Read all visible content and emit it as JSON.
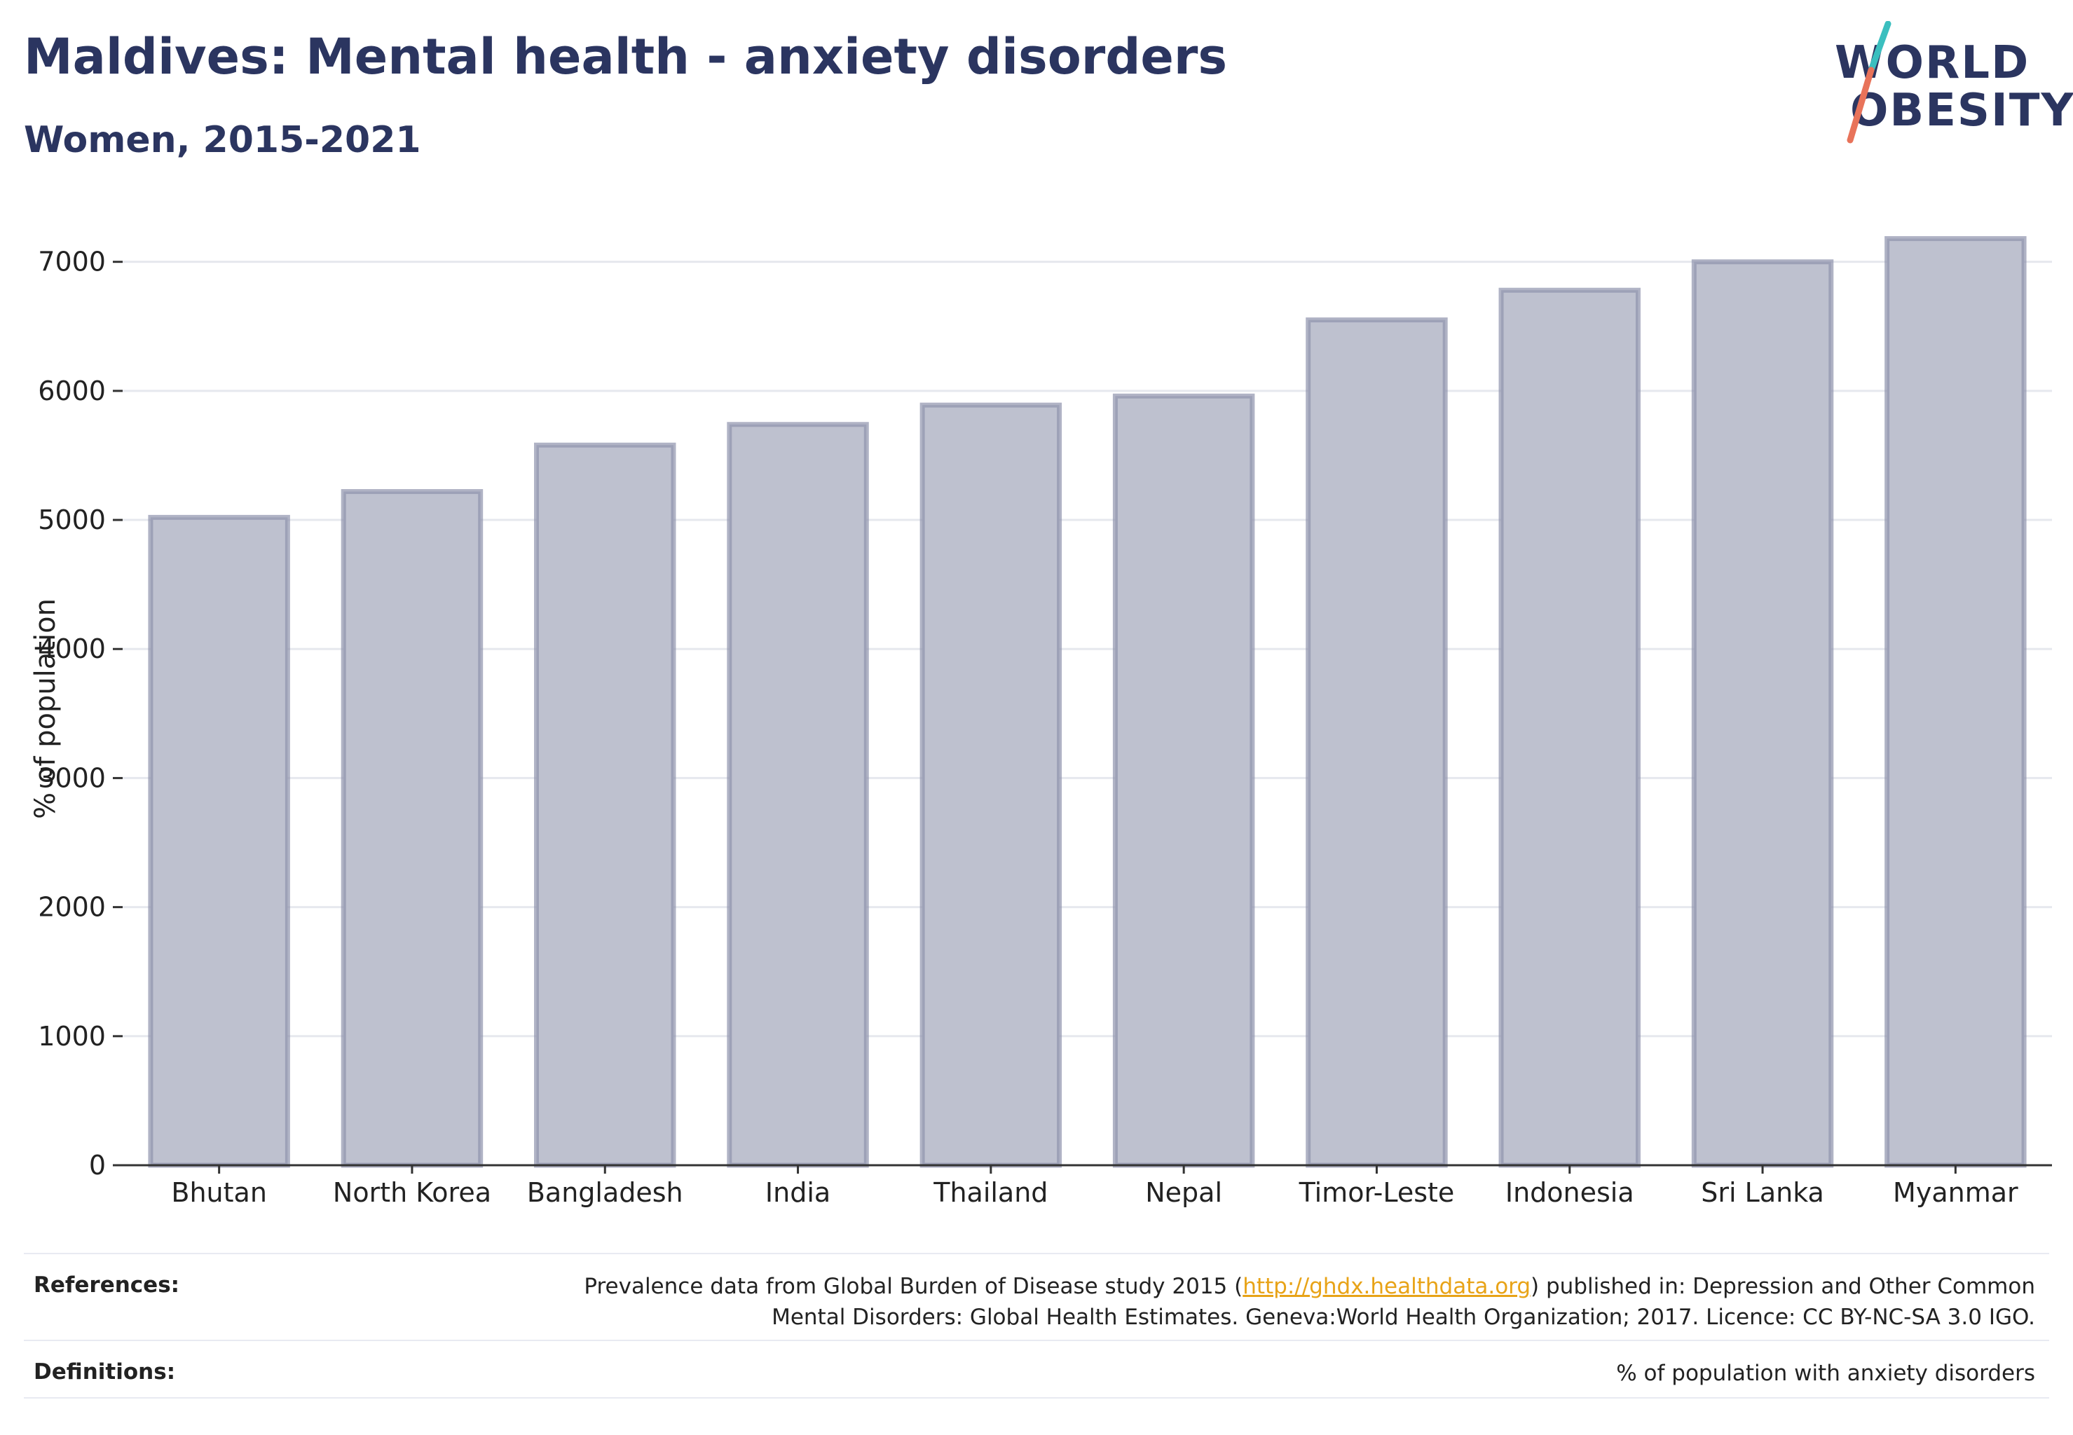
{
  "header": {
    "title": "Maldives: Mental health - anxiety disorders",
    "subtitle": "Women, 2015-2021"
  },
  "logo": {
    "line1": "WORLD",
    "line2": "OBESITY",
    "accent_teal": "#3bbfbf",
    "accent_coral": "#e8735a"
  },
  "chart_data": {
    "type": "bar",
    "categories": [
      "Bhutan",
      "North Korea",
      "Bangladesh",
      "India",
      "Thailand",
      "Nepal",
      "Timor-Leste",
      "Indonesia",
      "Sri Lanka",
      "Myanmar"
    ],
    "values": [
      5020,
      5220,
      5580,
      5740,
      5890,
      5960,
      6550,
      6780,
      7000,
      7180
    ],
    "ylabel": "% of population",
    "xlabel": "",
    "ylim": [
      0,
      7400
    ],
    "yticks": [
      0,
      1000,
      2000,
      3000,
      4000,
      5000,
      6000,
      7000
    ],
    "grid": true,
    "legend": "none",
    "bar_fill": "#bec1cf",
    "bar_stroke": "#8e93ad",
    "text_color": "#222222",
    "grid_color": "#e6e8ee"
  },
  "footer": {
    "references_label": "References:",
    "references_text_before": "Prevalence data from Global Burden of Disease study 2015 (",
    "references_link": "http://ghdx.healthdata.org",
    "references_text_after": ") published in: Depression and Other Common",
    "references_text_line2": "Mental Disorders: Global Health Estimates. Geneva:World Health Organization; 2017. Licence: CC BY-NC-SA 3.0 IGO.",
    "definitions_label": "Definitions:",
    "definitions_text": "% of population with anxiety disorders"
  }
}
